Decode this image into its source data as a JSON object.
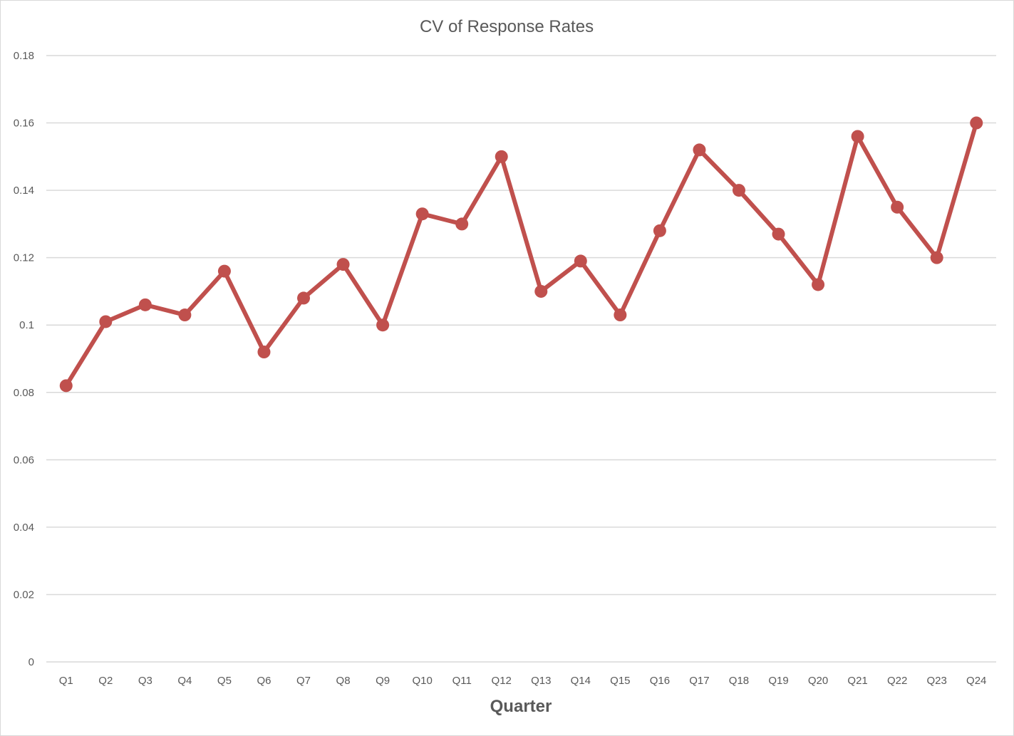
{
  "chart_data": {
    "type": "line",
    "title": "CV of Response Rates",
    "xlabel": "Quarter",
    "ylabel": "",
    "categories": [
      "Q1",
      "Q2",
      "Q3",
      "Q4",
      "Q5",
      "Q6",
      "Q7",
      "Q8",
      "Q9",
      "Q10",
      "Q11",
      "Q12",
      "Q13",
      "Q14",
      "Q15",
      "Q16",
      "Q17",
      "Q18",
      "Q19",
      "Q20",
      "Q21",
      "Q22",
      "Q23",
      "Q24"
    ],
    "series": [
      {
        "values": [
          0.082,
          0.101,
          0.106,
          0.103,
          0.116,
          0.092,
          0.108,
          0.118,
          0.1,
          0.133,
          0.13,
          0.15,
          0.11,
          0.119,
          0.103,
          0.128,
          0.152,
          0.14,
          0.127,
          0.112,
          0.156,
          0.135,
          0.12,
          0.16
        ],
        "color": "#c0504d"
      }
    ],
    "ylim": [
      0,
      0.18
    ],
    "yticks": [
      0,
      0.02,
      0.04,
      0.06,
      0.08,
      0.1,
      0.12,
      0.14,
      0.16,
      0.18
    ],
    "ytick_labels": [
      "0",
      "0.02",
      "0.04",
      "0.06",
      "0.08",
      "0.1",
      "0.12",
      "0.14",
      "0.16",
      "0.18"
    ],
    "grid": true,
    "legend": "none",
    "colors": {
      "series": "#c0504d",
      "gridline": "#d9d9d9",
      "text": "#595959"
    }
  }
}
